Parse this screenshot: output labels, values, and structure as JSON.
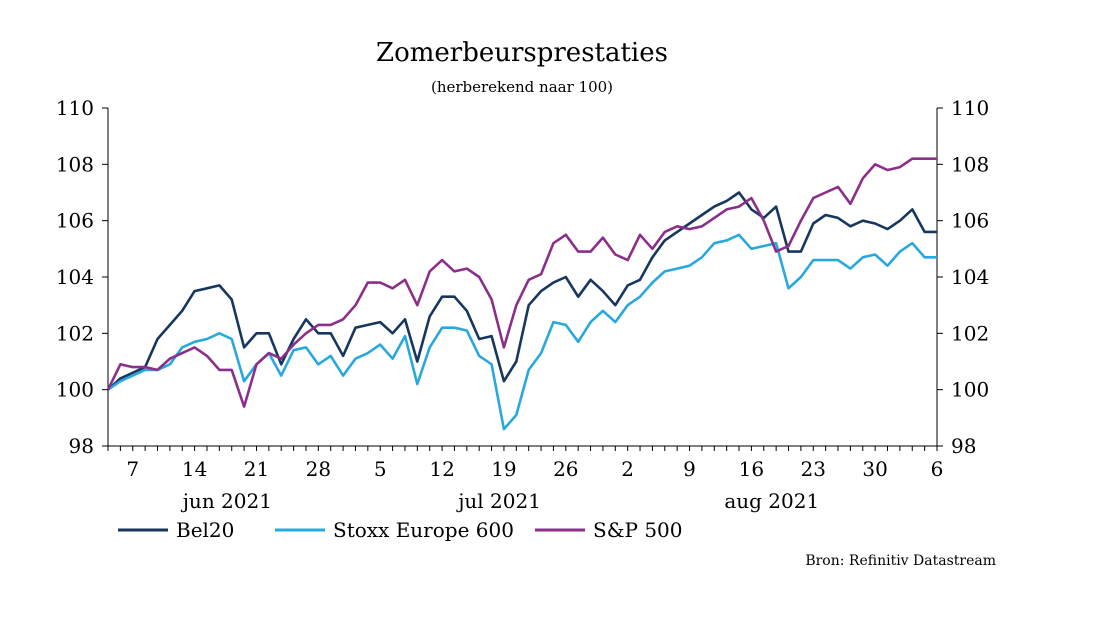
{
  "chart_data": {
    "type": "line",
    "title": "Zomerbeursprestaties",
    "subtitle": "(herberekend naar 100)",
    "ylim": [
      98,
      110
    ],
    "yticks": [
      98,
      100,
      102,
      104,
      106,
      108,
      110
    ],
    "xlim": [
      0,
      66
    ],
    "xtick_labels": [
      {
        "i": 3,
        "label": "7"
      },
      {
        "i": 8,
        "label": "14"
      },
      {
        "i": 13,
        "label": "21"
      },
      {
        "i": 18,
        "label": "28"
      },
      {
        "i": 23,
        "label": "5"
      },
      {
        "i": 28,
        "label": "12"
      },
      {
        "i": 33,
        "label": "19"
      },
      {
        "i": 38,
        "label": "26"
      },
      {
        "i": 43,
        "label": "2"
      },
      {
        "i": 48,
        "label": "9"
      },
      {
        "i": 53,
        "label": "16"
      },
      {
        "i": 58,
        "label": "23"
      },
      {
        "i": 63,
        "label": "30"
      },
      {
        "i": 68,
        "label": "6"
      }
    ],
    "month_labels": [
      {
        "i": 10,
        "label": "jun 2021"
      },
      {
        "i": 32,
        "label": "jul 2021"
      },
      {
        "i": 54,
        "label": "aug 2021"
      }
    ],
    "grid": false,
    "legend_position": "bottom",
    "series": [
      {
        "name": "Bel20",
        "color": "#17375e",
        "values": [
          100.0,
          100.4,
          100.6,
          100.8,
          101.8,
          102.3,
          102.8,
          103.5,
          103.6,
          103.7,
          103.2,
          101.5,
          102.0,
          102.0,
          100.9,
          101.8,
          102.5,
          102.0,
          102.0,
          101.2,
          102.2,
          102.3,
          102.4,
          102.0,
          102.5,
          101.0,
          102.6,
          103.3,
          103.3,
          102.8,
          101.8,
          101.9,
          100.3,
          101.0,
          103.0,
          103.5,
          103.8,
          104.0,
          103.3,
          103.9,
          103.5,
          103.0,
          103.7,
          103.9,
          104.7,
          105.3,
          105.6,
          105.9,
          106.2,
          106.5,
          106.7,
          107.0,
          106.4,
          106.1,
          106.5,
          104.9,
          104.9,
          105.9,
          106.2,
          106.1,
          105.8,
          106.0,
          105.9,
          105.7,
          106.0,
          106.4,
          105.6,
          105.6
        ]
      },
      {
        "name": "Stoxx Europe 600",
        "color": "#29a8df",
        "values": [
          100.0,
          100.3,
          100.5,
          100.7,
          100.7,
          100.9,
          101.5,
          101.7,
          101.8,
          102.0,
          101.8,
          100.3,
          100.9,
          101.3,
          100.5,
          101.4,
          101.5,
          100.9,
          101.2,
          100.5,
          101.1,
          101.3,
          101.6,
          101.1,
          101.9,
          100.2,
          101.5,
          102.2,
          102.2,
          102.1,
          101.2,
          100.9,
          98.6,
          99.1,
          100.7,
          101.3,
          102.4,
          102.3,
          101.7,
          102.4,
          102.8,
          102.4,
          103.0,
          103.3,
          103.8,
          104.2,
          104.3,
          104.4,
          104.7,
          105.2,
          105.3,
          105.5,
          105.0,
          105.1,
          105.2,
          103.6,
          104.0,
          104.6,
          104.6,
          104.6,
          104.3,
          104.7,
          104.8,
          104.4,
          104.9,
          105.2,
          104.7,
          104.7
        ]
      },
      {
        "name": "S&P 500",
        "color": "#8b2f8b",
        "values": [
          100.0,
          100.9,
          100.8,
          100.8,
          100.7,
          101.1,
          101.3,
          101.5,
          101.2,
          100.7,
          100.7,
          99.4,
          100.9,
          101.3,
          101.1,
          101.6,
          102.0,
          102.3,
          102.3,
          102.5,
          103.0,
          103.8,
          103.8,
          103.6,
          103.9,
          103.0,
          104.2,
          104.6,
          104.2,
          104.3,
          104.0,
          103.2,
          101.5,
          103.0,
          103.9,
          104.1,
          105.2,
          105.5,
          104.9,
          104.9,
          105.4,
          104.8,
          104.6,
          105.5,
          105.0,
          105.6,
          105.8,
          105.7,
          105.8,
          106.1,
          106.4,
          106.5,
          106.8,
          106.0,
          104.9,
          105.1,
          106.0,
          106.8,
          107.0,
          107.2,
          106.6,
          107.5,
          108.0,
          107.8,
          107.9,
          108.2,
          108.2,
          108.2
        ]
      }
    ],
    "source": "Bron: Refinitiv Datastream"
  }
}
